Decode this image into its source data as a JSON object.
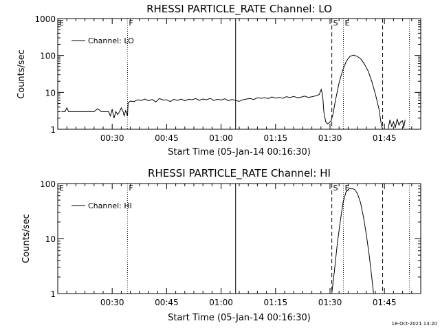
{
  "footer": {
    "timestamp": "18-Oct-2021 13:20"
  },
  "chart_data": [
    {
      "type": "line",
      "title": "RHESSI PARTICLE_RATE Channel: LO",
      "xlabel": "Start Time (05-Jan-14 00:16:30)",
      "ylabel": "Counts/sec",
      "yscale": "log",
      "ylim": [
        1,
        1000
      ],
      "xlim_minutes": [
        0,
        100
      ],
      "x_ticks": [
        {
          "t": 15,
          "label": "00:30"
        },
        {
          "t": 30,
          "label": "00:45"
        },
        {
          "t": 45,
          "label": "01:00"
        },
        {
          "t": 60,
          "label": "01:15"
        },
        {
          "t": 75,
          "label": "01:30"
        },
        {
          "t": 90,
          "label": "01:45"
        }
      ],
      "y_ticks": [
        {
          "v": 1,
          "label": "1"
        },
        {
          "v": 10,
          "label": "10"
        },
        {
          "v": 100,
          "label": "100"
        },
        {
          "v": 1000,
          "label": "1000"
        }
      ],
      "legend": {
        "label": "Channel: LO",
        "position": "top-left"
      },
      "markers": [
        {
          "t": 0,
          "label": "E",
          "style": "none"
        },
        {
          "t": 19.2,
          "label": "F",
          "style": "dotted"
        },
        {
          "t": 49,
          "label": "",
          "style": "solid"
        },
        {
          "t": 75.5,
          "label": "S",
          "style": "dashed"
        },
        {
          "t": 78.7,
          "label": "E",
          "style": "dotted"
        },
        {
          "t": 89.5,
          "label": "",
          "style": "dashed"
        },
        {
          "t": 96.9,
          "label": "",
          "style": "dotted"
        }
      ],
      "series": [
        {
          "points": [
            [
              1,
              3
            ],
            [
              2,
              3
            ],
            [
              2.5,
              3.8
            ],
            [
              3,
              3
            ],
            [
              5,
              3
            ],
            [
              8,
              3
            ],
            [
              10,
              3
            ],
            [
              11,
              3.6
            ],
            [
              12,
              3
            ],
            [
              13,
              3
            ],
            [
              14,
              3
            ],
            [
              14.5,
              2.3
            ],
            [
              15,
              3.5
            ],
            [
              15.5,
              2
            ],
            [
              16,
              3
            ],
            [
              16.5,
              2.5
            ],
            [
              17,
              3
            ],
            [
              17.5,
              3.8
            ],
            [
              18,
              3
            ],
            [
              18.3,
              2.3
            ],
            [
              18.7,
              3.2
            ],
            [
              19.2,
              2.3
            ],
            [
              19.4,
              5.2
            ],
            [
              20,
              5.8
            ],
            [
              21,
              5.6
            ],
            [
              22,
              6.3
            ],
            [
              23,
              6.0
            ],
            [
              24,
              6.6
            ],
            [
              25,
              5.9
            ],
            [
              26,
              6.4
            ],
            [
              27,
              5.5
            ],
            [
              28,
              6.8
            ],
            [
              29,
              6.2
            ],
            [
              30,
              6.3
            ],
            [
              31,
              5.6
            ],
            [
              32,
              6.5
            ],
            [
              33,
              6.0
            ],
            [
              34,
              6.6
            ],
            [
              35,
              5.9
            ],
            [
              36,
              6.5
            ],
            [
              37,
              6.3
            ],
            [
              38,
              6.8
            ],
            [
              39,
              6.1
            ],
            [
              40,
              6.6
            ],
            [
              41,
              6.3
            ],
            [
              42,
              6.9
            ],
            [
              43,
              6.0
            ],
            [
              44,
              6.5
            ],
            [
              45,
              6.2
            ],
            [
              46,
              6.7
            ],
            [
              47,
              5.9
            ],
            [
              48,
              6.4
            ],
            [
              49,
              6.0
            ],
            [
              50,
              5.7
            ],
            [
              51,
              6.3
            ],
            [
              52,
              6.6
            ],
            [
              53,
              6.8
            ],
            [
              54,
              6.4
            ],
            [
              55,
              7.1
            ],
            [
              56,
              6.9
            ],
            [
              57,
              7.2
            ],
            [
              58,
              6.8
            ],
            [
              59,
              7.5
            ],
            [
              60,
              7.0
            ],
            [
              61,
              7.3
            ],
            [
              62,
              6.9
            ],
            [
              63,
              7.6
            ],
            [
              64,
              7.2
            ],
            [
              65,
              7.8
            ],
            [
              66,
              7.1
            ],
            [
              67,
              7.4
            ],
            [
              68,
              7.9
            ],
            [
              69,
              7.3
            ],
            [
              70,
              7.6
            ],
            [
              71,
              8.0
            ],
            [
              72,
              8.7
            ],
            [
              72.6,
              12
            ],
            [
              73,
              8
            ],
            [
              73.3,
              3
            ],
            [
              73.8,
              1.6
            ],
            [
              74.3,
              1.4
            ],
            [
              74.8,
              1.5
            ],
            [
              75.3,
              1.7
            ],
            [
              75.8,
              2.5
            ],
            [
              76.5,
              6
            ],
            [
              77.5,
              18
            ],
            [
              78.5,
              40
            ],
            [
              79.5,
              70
            ],
            [
              80.5,
              95
            ],
            [
              81.5,
              102
            ],
            [
              82.5,
              95
            ],
            [
              83.5,
              80
            ],
            [
              84.5,
              58
            ],
            [
              85.5,
              38
            ],
            [
              86.5,
              20
            ],
            [
              87.5,
              9
            ],
            [
              88.5,
              3.5
            ],
            [
              89.2,
              1.2
            ],
            [
              89.6,
              1.0
            ],
            [
              91,
              1.0
            ],
            [
              91.5,
              1.8
            ],
            [
              92,
              1.2
            ],
            [
              92.5,
              1.6
            ],
            [
              93,
              1.1
            ],
            [
              93.5,
              1.9
            ],
            [
              94,
              1.3
            ],
            [
              94.5,
              1.6
            ],
            [
              95,
              1.7
            ],
            [
              95.3,
              1.1
            ],
            [
              95.7,
              1.8
            ]
          ]
        }
      ]
    },
    {
      "type": "line",
      "title": "RHESSI PARTICLE_RATE Channel: HI",
      "xlabel": "Start Time (05-Jan-14 00:16:30)",
      "ylabel": "Counts/sec",
      "yscale": "log",
      "ylim": [
        1,
        100
      ],
      "xlim_minutes": [
        0,
        100
      ],
      "x_ticks": [
        {
          "t": 15,
          "label": "00:30"
        },
        {
          "t": 30,
          "label": "00:45"
        },
        {
          "t": 45,
          "label": "01:00"
        },
        {
          "t": 60,
          "label": "01:15"
        },
        {
          "t": 75,
          "label": "01:30"
        },
        {
          "t": 90,
          "label": "01:45"
        }
      ],
      "y_ticks": [
        {
          "v": 1,
          "label": "1"
        },
        {
          "v": 10,
          "label": "10"
        },
        {
          "v": 100,
          "label": "100"
        }
      ],
      "legend": {
        "label": "Channel: HI",
        "position": "top-left"
      },
      "markers": [
        {
          "t": 0,
          "label": "E",
          "style": "none"
        },
        {
          "t": 19.2,
          "label": "F",
          "style": "dotted"
        },
        {
          "t": 49,
          "label": "",
          "style": "solid"
        },
        {
          "t": 75.5,
          "label": "S",
          "style": "dashed"
        },
        {
          "t": 78.7,
          "label": "E",
          "style": "dotted"
        },
        {
          "t": 89.5,
          "label": "",
          "style": "dashed"
        },
        {
          "t": 96.9,
          "label": "",
          "style": "dotted"
        }
      ],
      "series": [
        {
          "points": [
            [
              75.5,
              1.0
            ],
            [
              76.2,
              2.5
            ],
            [
              77,
              8
            ],
            [
              77.8,
              20
            ],
            [
              78.6,
              45
            ],
            [
              79.4,
              70
            ],
            [
              80.2,
              80
            ],
            [
              81,
              82
            ],
            [
              81.8,
              78
            ],
            [
              82.6,
              65
            ],
            [
              83.4,
              45
            ],
            [
              84.2,
              25
            ],
            [
              85,
              12
            ],
            [
              85.8,
              5
            ],
            [
              86.5,
              2
            ],
            [
              87,
              1.0
            ]
          ]
        }
      ]
    }
  ]
}
